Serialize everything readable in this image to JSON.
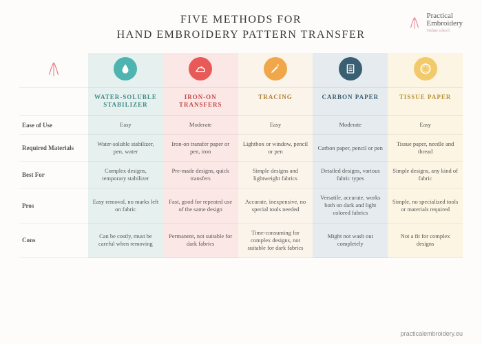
{
  "title_line1": "FIVE METHODS FOR",
  "title_line2": "HAND EMBROIDERY PATTERN TRANSFER",
  "logo": {
    "main": "Practical\nEmbroidery",
    "sub": "Online school",
    "icon_color": "#e4848f"
  },
  "footer": "practicalembroidery.eu",
  "row_labels": [
    "Ease of Use",
    "Required Materials",
    "Best For",
    "Pros",
    "Cons"
  ],
  "columns": [
    {
      "header": "WATER-SOLUBLE STABILIZER",
      "icon": "droplet",
      "icon_bg": "#4db4b0",
      "icon_fg": "#ffffff",
      "col_bg": "#e6f1ef",
      "header_text_color": "#3e8a86",
      "cells": [
        "Easy",
        "Water-soluble stabilizer, pen, water",
        "Complex designs, temporary stabilizer",
        "Easy removal, no marks left on fabric",
        "Can be costly, must be careful when removing"
      ]
    },
    {
      "header": "IRON-ON TRANSFERS",
      "icon": "iron",
      "icon_bg": "#e85a57",
      "icon_fg": "#ffffff",
      "col_bg": "#fbe7e6",
      "header_text_color": "#c44a47",
      "cells": [
        "Moderate",
        "Iron-on transfer paper or pen, iron",
        "Pre-made designs, quick transfers",
        "Fast, good for repeated use of the same design",
        "Permanent, not suitable for dark fabrics"
      ]
    },
    {
      "header": "TRACING",
      "icon": "pencil",
      "icon_bg": "#f0a74a",
      "icon_fg": "#ffffff",
      "col_bg": "#faf4ea",
      "header_text_color": "#b07a2e",
      "cells": [
        "Easy",
        "Lightbox or window, pencil or pen",
        "Simple designs and lightweight fabrics",
        "Accurate, inexpensive, no special tools needed",
        "Time-consuming for complex designs, not suitable for dark fabrics"
      ]
    },
    {
      "header": "CARBON PAPER",
      "icon": "document",
      "icon_bg": "#3a5f72",
      "icon_fg": "#ffffff",
      "col_bg": "#e5ebee",
      "header_text_color": "#3a5f72",
      "cells": [
        "Moderate",
        "Carbon paper, pencil or pen",
        "Detailed designs, various fabric types",
        "Versatile, accurate, works both on dark and light colored fabrics",
        "Might not wash out completely"
      ]
    },
    {
      "header": "TISSUE PAPER",
      "icon": "hoop",
      "icon_bg": "#f2c96b",
      "icon_fg": "#ffffff",
      "col_bg": "#fcf5e3",
      "header_text_color": "#b8933a",
      "cells": [
        "Easy",
        "Tissue paper, needle and thread",
        "Simple designs, any kind of fabric",
        "Simple, no specialized tools or materials required",
        "Not a fit for complex designs"
      ]
    }
  ]
}
